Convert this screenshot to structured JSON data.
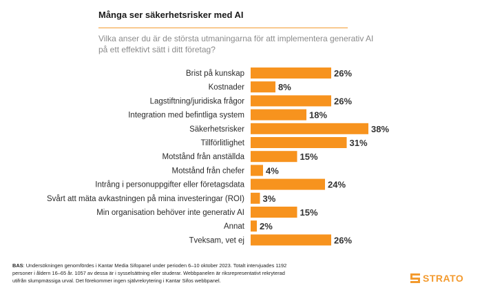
{
  "title": "Många ser säkerhetsrisker med AI",
  "subtitle": "Vilka anser du är de största utmaningarna för att implementera generativ AI på ett effektivt sätt i ditt företag?",
  "footnote": {
    "bold": "BAS",
    "text": ": Undersökningen genomfördes i Kantar Media Sifopanel under perioden 6–10 oktober 2023. Totalt intervjuades 1192 personer i åldern 16–65 år. 1057 av dessa är i sysselsättning eller studerar. Webbpanelen är riksrepresentativt rekryterad utifrån slumpmässiga urval. Det förekommer ingen självrekrytering i Kantar Sifos webbpanel."
  },
  "logo": {
    "text": "STRATO",
    "color": "#f39a2e"
  },
  "chart_data": {
    "type": "bar",
    "orientation": "horizontal",
    "categories": [
      "Brist på kunskap",
      "Kostnader",
      "Lagstiftning/juridiska frågor",
      "Integration med befintliga system",
      "Säkerhetsrisker",
      "Tillförlitlighet",
      "Motstånd från anställda",
      "Motstånd från chefer",
      "Intrång i personuppgifter eller företagsdata",
      "Svårt att mäta avkastningen på mina investeringar (ROI)",
      "Min organisation behöver inte generativ AI",
      "Annat",
      "Tveksam, vet ej"
    ],
    "values": [
      26,
      8,
      26,
      18,
      38,
      31,
      15,
      4,
      24,
      3,
      15,
      2,
      26
    ],
    "value_labels": [
      "26%",
      "8%",
      "26%",
      "18%",
      "38%",
      "31%",
      "15%",
      "4%",
      "24%",
      "3%",
      "15%",
      "2%",
      "26%"
    ],
    "bar_color": "#f7931e",
    "grid": false,
    "legend": "none"
  }
}
